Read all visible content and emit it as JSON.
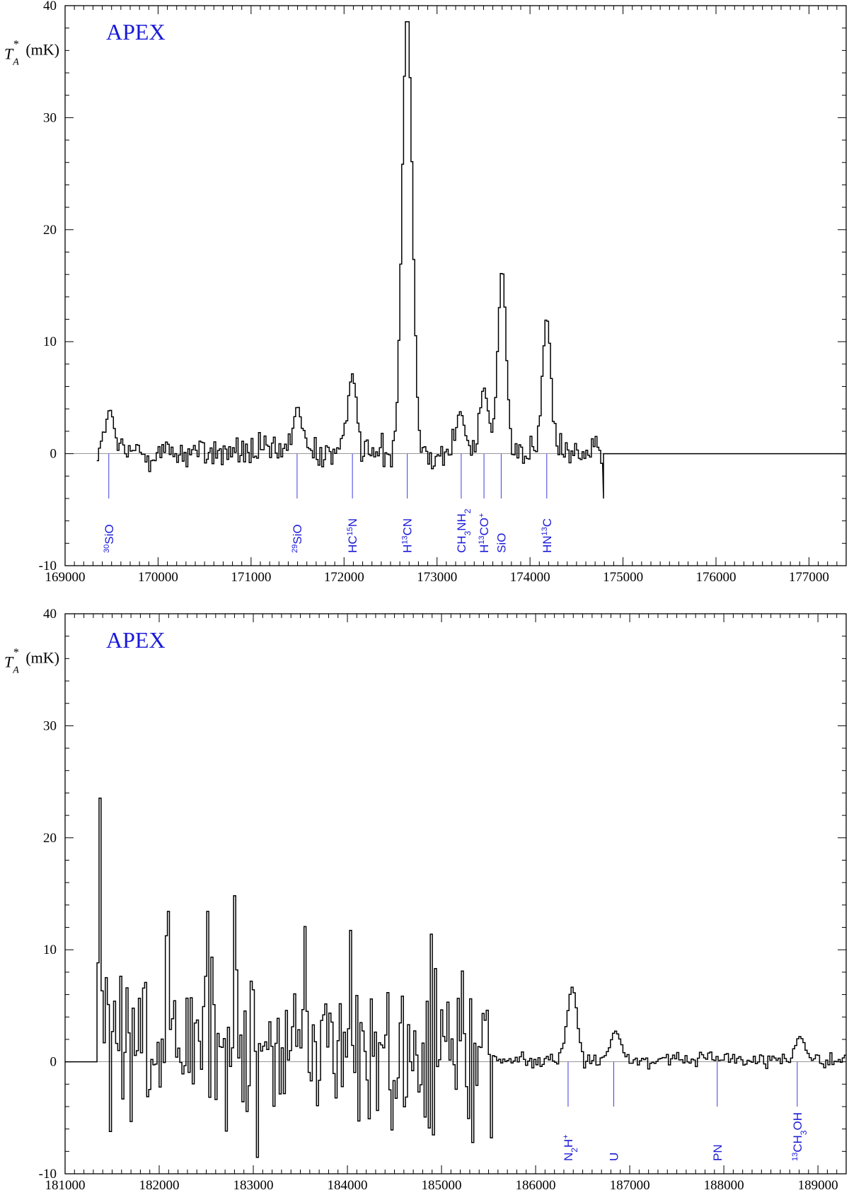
{
  "chart_data": [
    {
      "type": "line",
      "telescope_label": "APEX",
      "ylabel": {
        "main": "T",
        "sub": "A",
        "sup": "*",
        "unit": "(mK)"
      },
      "xlim": [
        169000,
        177400
      ],
      "ylim": [
        -10,
        40
      ],
      "xticks": [
        169000,
        170000,
        171000,
        172000,
        173000,
        174000,
        175000,
        176000,
        177000
      ],
      "yticks": [
        -10,
        0,
        10,
        20,
        30,
        40
      ],
      "data_x_range": [
        169350,
        174780
      ],
      "line_markers": [
        {
          "x": 169470,
          "label": [
            {
              "t": "30",
              "sup": true
            },
            {
              "t": "SiO"
            }
          ]
        },
        {
          "x": 171495,
          "label": [
            {
              "t": "29",
              "sup": true
            },
            {
              "t": "SiO"
            }
          ]
        },
        {
          "x": 172090,
          "label": [
            {
              "t": "HC"
            },
            {
              "t": "15",
              "sup": true
            },
            {
              "t": "N"
            }
          ]
        },
        {
          "x": 172680,
          "label": [
            {
              "t": "H"
            },
            {
              "t": "13",
              "sup": true
            },
            {
              "t": "CN"
            }
          ]
        },
        {
          "x": 173260,
          "label": [
            {
              "t": "CH"
            },
            {
              "t": "3",
              "sub": true
            },
            {
              "t": "NH"
            },
            {
              "t": "2",
              "sub": true
            }
          ]
        },
        {
          "x": 173505,
          "label": [
            {
              "t": "H"
            },
            {
              "t": "13",
              "sup": true
            },
            {
              "t": "CO"
            },
            {
              "t": "+",
              "sup": true
            }
          ]
        },
        {
          "x": 173690,
          "label": [
            {
              "t": "SiO"
            }
          ]
        },
        {
          "x": 174180,
          "label": [
            {
              "t": "HN"
            },
            {
              "t": "13",
              "sup": true
            },
            {
              "t": "C"
            }
          ]
        }
      ],
      "peaks": [
        {
          "x": 169480,
          "y": 4.0
        },
        {
          "x": 171500,
          "y": 4.3
        },
        {
          "x": 172090,
          "y": 7.3
        },
        {
          "x": 172680,
          "y": 40.0
        },
        {
          "x": 173250,
          "y": 3.8
        },
        {
          "x": 173505,
          "y": 6.0
        },
        {
          "x": 173700,
          "y": 16.8
        },
        {
          "x": 174180,
          "y": 12.4
        }
      ]
    },
    {
      "type": "line",
      "telescope_label": "APEX",
      "ylabel": {
        "main": "T",
        "sub": "A",
        "sup": "*",
        "unit": "(mK)"
      },
      "xlim": [
        181000,
        189300
      ],
      "ylim": [
        -10,
        40
      ],
      "xticks": [
        181000,
        182000,
        183000,
        184000,
        185000,
        186000,
        187000,
        188000,
        189000
      ],
      "yticks": [
        -10,
        0,
        10,
        20,
        30,
        40
      ],
      "data_x_range": [
        181350,
        189300
      ],
      "line_markers": [
        {
          "x": 186345,
          "label": [
            {
              "t": "N"
            },
            {
              "t": "2",
              "sub": true
            },
            {
              "t": "H"
            },
            {
              "t": "+",
              "sup": true
            }
          ]
        },
        {
          "x": 186830,
          "label": [
            {
              "t": "U"
            }
          ]
        },
        {
          "x": 187930,
          "label": [
            {
              "t": "PN"
            }
          ]
        },
        {
          "x": 188780,
          "label": [
            {
              "t": "13",
              "sup": true
            },
            {
              "t": "CH"
            },
            {
              "t": "3",
              "sub": true
            },
            {
              "t": "OH"
            }
          ]
        }
      ],
      "peaks": [
        {
          "x": 181370,
          "y": 24.3
        },
        {
          "x": 182090,
          "y": 15.0
        },
        {
          "x": 182510,
          "y": 15.0
        },
        {
          "x": 182810,
          "y": 16.8
        },
        {
          "x": 183550,
          "y": 12.3
        },
        {
          "x": 184030,
          "y": 12.3
        },
        {
          "x": 185220,
          "y": 8.5
        },
        {
          "x": 186390,
          "y": 6.8
        },
        {
          "x": 186850,
          "y": 2.8
        },
        {
          "x": 188810,
          "y": 2.3
        }
      ]
    }
  ]
}
